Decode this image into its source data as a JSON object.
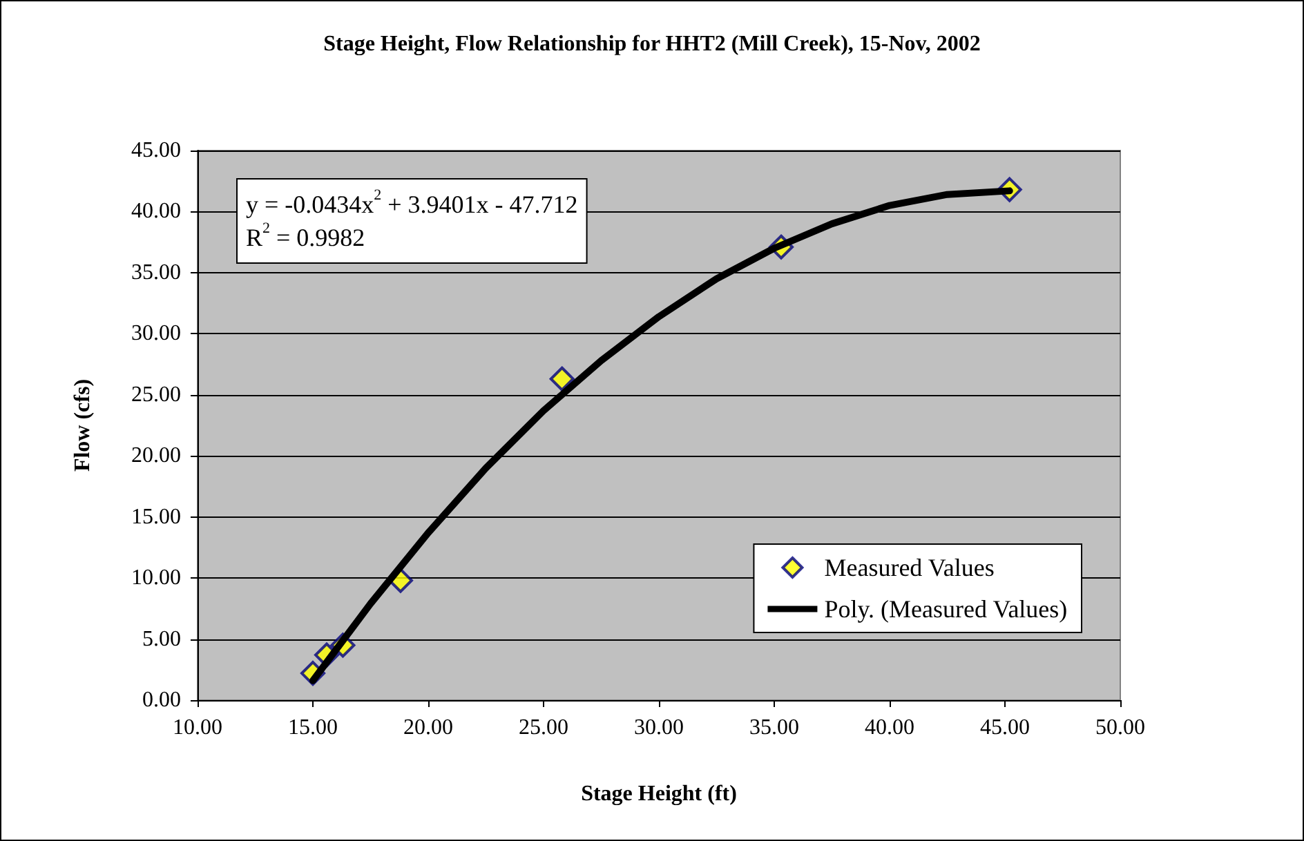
{
  "chart_data": {
    "type": "scatter",
    "title": "Stage Height, Flow Relationship for HHT2 (Mill Creek), 15-Nov, 2002",
    "xlabel": "Stage Height (ft)",
    "ylabel": "Flow (cfs)",
    "annotations": [
      "y = -0.0434x$^{2}$ + 3.9401x - 47.712",
      "R$^{2}$ = 0.9982"
    ],
    "series": [
      {
        "name": "Measured Values",
        "color": "#ffff00",
        "marker": "diamond",
        "x": [
          15.0,
          15.6,
          16.3,
          18.8,
          25.8,
          35.3,
          45.2
        ],
        "values": [
          2.2,
          3.7,
          4.5,
          9.8,
          26.3,
          37.1,
          41.8
        ]
      },
      {
        "name": "Poly. (Measured Values)",
        "type": "line",
        "color": "#000000",
        "marker": "none",
        "line_style": "solid",
        "x": [
          15,
          17.5,
          20,
          22.5,
          25,
          27.5,
          30,
          32.5,
          35,
          37.5,
          40,
          42.5,
          45.2
        ],
        "values": [
          1.6,
          7.9,
          13.7,
          19.0,
          23.7,
          27.8,
          31.4,
          34.5,
          37.0,
          39.0,
          40.5,
          41.4,
          41.7
        ]
      }
    ],
    "xlim": [
      10,
      50
    ],
    "xticks": [
      {
        "value": 10,
        "label": "10.00"
      },
      {
        "value": 15,
        "label": "15.00"
      },
      {
        "value": 20,
        "label": "20.00"
      },
      {
        "value": 25,
        "label": "25.00"
      },
      {
        "value": 30,
        "label": "30.00"
      },
      {
        "value": 35,
        "label": "35.00"
      },
      {
        "value": 40,
        "label": "40.00"
      },
      {
        "value": 45,
        "label": "45.00"
      },
      {
        "value": 50,
        "label": "50.00"
      }
    ],
    "ylim": [
      0,
      45
    ],
    "yticks": [
      {
        "value": 0,
        "label": "0.00"
      },
      {
        "value": 5,
        "label": "5.00"
      },
      {
        "value": 10,
        "label": "10.00"
      },
      {
        "value": 15,
        "label": "15.00"
      },
      {
        "value": 20,
        "label": "20.00"
      },
      {
        "value": 25,
        "label": "25.00"
      },
      {
        "value": 30,
        "label": "30.00"
      },
      {
        "value": 35,
        "label": "35.00"
      },
      {
        "value": 40,
        "label": "40.00"
      },
      {
        "value": 45,
        "label": "45.00"
      }
    ],
    "grid": "y",
    "legend": "bottom right"
  }
}
